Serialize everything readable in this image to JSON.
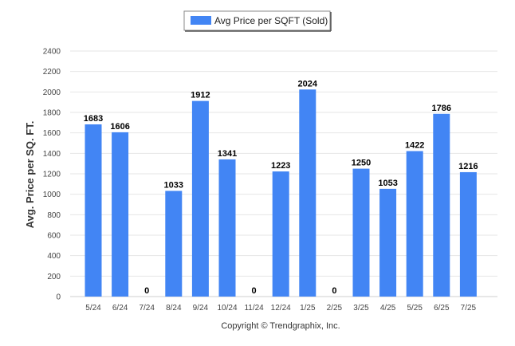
{
  "chart_data": {
    "type": "bar",
    "categories": [
      "5/24",
      "6/24",
      "7/24",
      "8/24",
      "9/24",
      "10/24",
      "11/24",
      "12/24",
      "1/25",
      "2/25",
      "3/25",
      "4/25",
      "5/25",
      "6/25",
      "7/25"
    ],
    "series": [
      {
        "name": "Avg Price per SQFT (Sold)",
        "values": [
          1683,
          1606,
          0,
          1033,
          1912,
          1341,
          0,
          1223,
          2024,
          0,
          1250,
          1053,
          1422,
          1786,
          1216
        ],
        "color": "#4285f4"
      }
    ],
    "ylabel": "Avg. Price per SQ. FT.",
    "xlabel": "",
    "ylim": [
      0,
      2400
    ],
    "yticks": [
      0,
      200,
      400,
      600,
      800,
      1000,
      1200,
      1400,
      1600,
      1800,
      2000,
      2200,
      2400
    ],
    "grid": true,
    "legend_position": "top-center",
    "data_labels": true
  },
  "footer": {
    "copyright": "Copyright © Trendgraphix, Inc."
  }
}
